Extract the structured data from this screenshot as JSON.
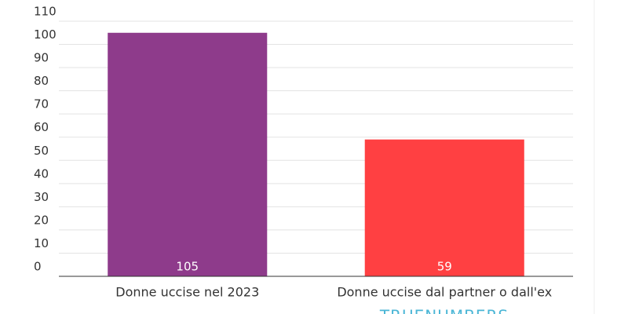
{
  "chart_data": {
    "type": "bar",
    "categories": [
      "Donne uccise nel 2023",
      "Donne uccise dal partner o dall'ex"
    ],
    "values": [
      105,
      59
    ],
    "colors": [
      "#8e3b8b",
      "#ff4042"
    ],
    "ylim": [
      0,
      110
    ],
    "yticks": [
      0,
      10,
      20,
      30,
      40,
      50,
      60,
      70,
      80,
      90,
      100,
      110
    ],
    "grid": true,
    "watermark": "TRUENUMBERS"
  }
}
